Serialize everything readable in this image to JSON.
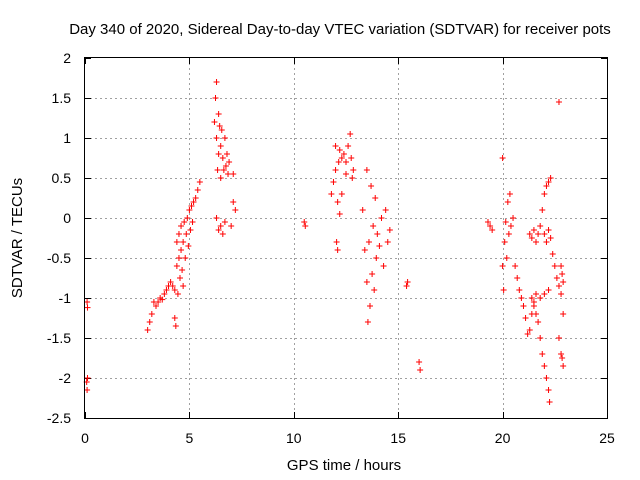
{
  "chart_data": {
    "type": "scatter",
    "title": "Day 340 of 2020, Sidereal Day-to-day VTEC variation (SDTVAR) for receiver pots",
    "xlabel": "GPS time / hours",
    "ylabel": "SDTVAR / TECUs",
    "xlim": [
      0,
      25
    ],
    "ylim": [
      -2.5,
      2
    ],
    "xticks": [
      0,
      5,
      10,
      15,
      20,
      25
    ],
    "xtick_labels": [
      "0",
      "5",
      "10",
      "15",
      "20",
      "25"
    ],
    "yticks": [
      -2.5,
      -2,
      -1.5,
      -1,
      -0.5,
      0,
      0.5,
      1,
      1.5,
      2
    ],
    "ytick_labels": [
      "-2.5",
      "-2",
      "-1.5",
      "-1",
      "-0.5",
      "0",
      "0.5",
      "1",
      "1.5",
      "2"
    ],
    "grid": true,
    "marker": "+",
    "marker_color": "#ff0000",
    "series": [
      {
        "name": "pots",
        "points": [
          [
            0.1,
            -1.05
          ],
          [
            0.12,
            -1.12
          ],
          [
            0.08,
            -2.05
          ],
          [
            0.1,
            -2.15
          ],
          [
            0.12,
            -2.0
          ],
          [
            3.0,
            -1.4
          ],
          [
            3.1,
            -1.3
          ],
          [
            3.2,
            -1.2
          ],
          [
            3.3,
            -1.05
          ],
          [
            3.4,
            -1.1
          ],
          [
            3.5,
            -1.05
          ],
          [
            3.6,
            -1.0
          ],
          [
            3.7,
            -1.02
          ],
          [
            3.8,
            -0.95
          ],
          [
            3.9,
            -0.9
          ],
          [
            4.0,
            -0.85
          ],
          [
            4.1,
            -0.8
          ],
          [
            4.2,
            -0.85
          ],
          [
            4.3,
            -0.9
          ],
          [
            4.3,
            -1.25
          ],
          [
            4.35,
            -1.35
          ],
          [
            4.4,
            -0.3
          ],
          [
            4.4,
            -0.6
          ],
          [
            4.45,
            -0.95
          ],
          [
            4.5,
            -0.5
          ],
          [
            4.5,
            -0.2
          ],
          [
            4.55,
            -0.75
          ],
          [
            4.6,
            -0.4
          ],
          [
            4.6,
            -0.1
          ],
          [
            4.65,
            -0.65
          ],
          [
            4.7,
            -0.3
          ],
          [
            4.7,
            -0.85
          ],
          [
            4.75,
            -0.05
          ],
          [
            4.8,
            -0.5
          ],
          [
            4.85,
            -0.2
          ],
          [
            4.9,
            0.0
          ],
          [
            4.95,
            -0.35
          ],
          [
            5.0,
            0.1
          ],
          [
            5.05,
            -0.15
          ],
          [
            5.1,
            0.15
          ],
          [
            5.15,
            -0.05
          ],
          [
            5.2,
            0.2
          ],
          [
            5.3,
            0.25
          ],
          [
            5.4,
            0.35
          ],
          [
            5.5,
            0.45
          ],
          [
            6.2,
            1.2
          ],
          [
            6.25,
            1.5
          ],
          [
            6.3,
            1.7
          ],
          [
            6.3,
            1.0
          ],
          [
            6.35,
            0.6
          ],
          [
            6.4,
            1.3
          ],
          [
            6.4,
            0.8
          ],
          [
            6.45,
            1.15
          ],
          [
            6.5,
            0.9
          ],
          [
            6.5,
            0.5
          ],
          [
            6.55,
            1.1
          ],
          [
            6.6,
            0.75
          ],
          [
            6.65,
            0.6
          ],
          [
            6.7,
            1.0
          ],
          [
            6.75,
            0.65
          ],
          [
            6.8,
            0.8
          ],
          [
            6.85,
            0.55
          ],
          [
            6.9,
            0.7
          ],
          [
            6.3,
            0.0
          ],
          [
            6.4,
            -0.15
          ],
          [
            6.5,
            -0.1
          ],
          [
            6.6,
            -0.2
          ],
          [
            6.7,
            -0.05
          ],
          [
            7.0,
            -0.1
          ],
          [
            7.1,
            0.2
          ],
          [
            7.2,
            0.1
          ],
          [
            7.1,
            0.55
          ],
          [
            10.5,
            -0.05
          ],
          [
            10.55,
            -0.1
          ],
          [
            11.8,
            0.3
          ],
          [
            11.9,
            0.45
          ],
          [
            12.0,
            0.9
          ],
          [
            12.0,
            0.6
          ],
          [
            12.05,
            -0.3
          ],
          [
            12.1,
            -0.4
          ],
          [
            12.1,
            0.2
          ],
          [
            12.15,
            0.7
          ],
          [
            12.2,
            0.05
          ],
          [
            12.2,
            0.85
          ],
          [
            12.3,
            0.3
          ],
          [
            12.3,
            0.75
          ],
          [
            12.4,
            0.8
          ],
          [
            12.5,
            0.55
          ],
          [
            12.5,
            0.7
          ],
          [
            12.6,
            0.9
          ],
          [
            12.7,
            1.05
          ],
          [
            12.75,
            0.75
          ],
          [
            12.8,
            0.5
          ],
          [
            12.85,
            0.6
          ],
          [
            13.3,
            0.1
          ],
          [
            13.4,
            -0.4
          ],
          [
            13.5,
            -0.8
          ],
          [
            13.5,
            0.6
          ],
          [
            13.55,
            -1.3
          ],
          [
            13.6,
            -0.3
          ],
          [
            13.65,
            -1.1
          ],
          [
            13.7,
            0.4
          ],
          [
            13.75,
            -0.7
          ],
          [
            13.8,
            -0.1
          ],
          [
            13.85,
            -0.9
          ],
          [
            13.9,
            0.25
          ],
          [
            13.95,
            -0.5
          ],
          [
            14.0,
            -0.2
          ],
          [
            14.1,
            -0.35
          ],
          [
            14.2,
            0.0
          ],
          [
            14.3,
            -0.6
          ],
          [
            14.4,
            0.1
          ],
          [
            14.5,
            -0.3
          ],
          [
            14.6,
            -0.15
          ],
          [
            15.4,
            -0.85
          ],
          [
            15.45,
            -0.8
          ],
          [
            16.0,
            -1.8
          ],
          [
            16.05,
            -1.9
          ],
          [
            19.3,
            -0.05
          ],
          [
            19.4,
            -0.1
          ],
          [
            19.5,
            -0.15
          ],
          [
            20.0,
            0.75
          ],
          [
            20.0,
            -0.6
          ],
          [
            20.05,
            -0.9
          ],
          [
            20.1,
            -0.3
          ],
          [
            20.15,
            -0.05
          ],
          [
            20.2,
            -0.5
          ],
          [
            20.25,
            0.2
          ],
          [
            20.3,
            -0.2
          ],
          [
            20.35,
            0.3
          ],
          [
            20.4,
            -0.1
          ],
          [
            20.5,
            0.0
          ],
          [
            20.6,
            -0.6
          ],
          [
            20.7,
            -0.75
          ],
          [
            20.8,
            -0.9
          ],
          [
            20.9,
            -1.0
          ],
          [
            21.0,
            -1.1
          ],
          [
            21.1,
            -1.25
          ],
          [
            21.2,
            -1.45
          ],
          [
            21.3,
            -1.4
          ],
          [
            21.4,
            -1.2
          ],
          [
            21.5,
            -1.05
          ],
          [
            21.6,
            -0.95
          ],
          [
            21.7,
            -1.3
          ],
          [
            21.8,
            -1.5
          ],
          [
            21.9,
            -1.7
          ],
          [
            22.0,
            -1.85
          ],
          [
            22.1,
            -2.0
          ],
          [
            22.2,
            -2.15
          ],
          [
            22.25,
            -2.3
          ],
          [
            21.3,
            -0.2
          ],
          [
            21.4,
            -0.25
          ],
          [
            21.5,
            -0.15
          ],
          [
            21.6,
            -0.3
          ],
          [
            21.7,
            -0.2
          ],
          [
            21.8,
            -0.1
          ],
          [
            21.9,
            0.1
          ],
          [
            22.0,
            0.3
          ],
          [
            22.1,
            0.4
          ],
          [
            22.2,
            0.45
          ],
          [
            22.3,
            0.5
          ],
          [
            22.0,
            -0.2
          ],
          [
            22.1,
            -0.3
          ],
          [
            22.2,
            -0.15
          ],
          [
            22.3,
            -0.25
          ],
          [
            22.4,
            -0.45
          ],
          [
            22.5,
            -0.6
          ],
          [
            22.6,
            -0.75
          ],
          [
            22.7,
            -0.85
          ],
          [
            22.8,
            -0.95
          ],
          [
            21.4,
            -1.0
          ],
          [
            21.5,
            -1.1
          ],
          [
            21.6,
            -1.2
          ],
          [
            21.8,
            -1.0
          ],
          [
            22.0,
            -0.95
          ],
          [
            22.2,
            -0.9
          ],
          [
            22.7,
            1.45
          ],
          [
            22.8,
            -0.6
          ],
          [
            22.85,
            -0.7
          ],
          [
            22.9,
            -0.8
          ],
          [
            22.9,
            -1.2
          ],
          [
            22.7,
            -1.5
          ],
          [
            22.8,
            -1.7
          ],
          [
            22.85,
            -1.75
          ],
          [
            22.9,
            -1.85
          ]
        ]
      }
    ]
  }
}
